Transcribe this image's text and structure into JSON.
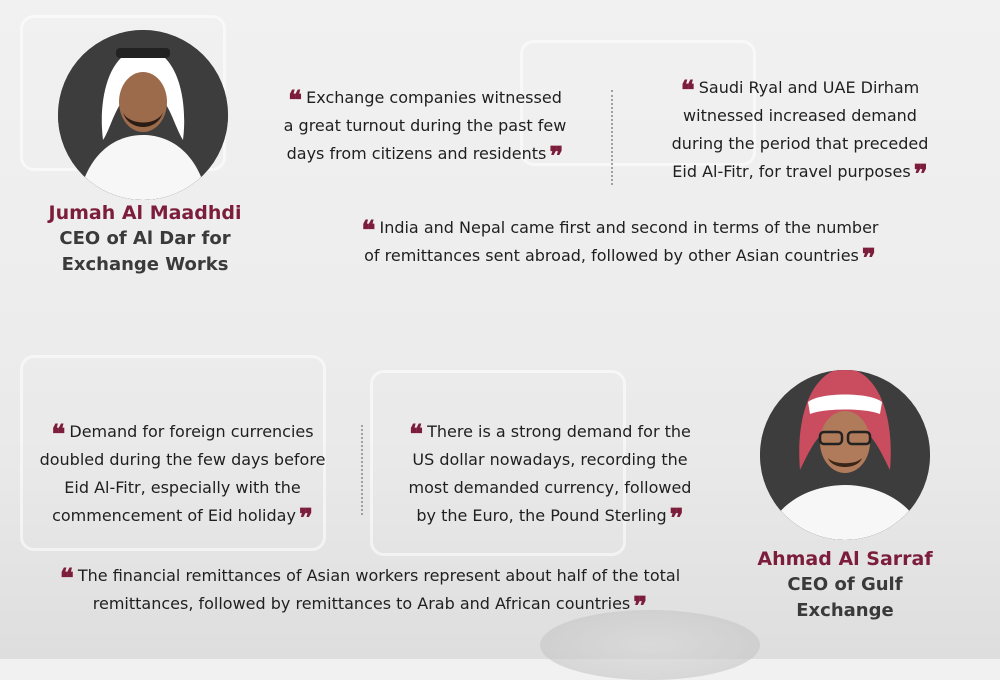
{
  "people": [
    {
      "name": "Jumah Al Maadhdi",
      "title_line1": "CEO of Al Dar for",
      "title_line2": "Exchange Works"
    },
    {
      "name": "Ahmad Al Sarraf",
      "title_line1": "CEO of Gulf",
      "title_line2": "Exchange"
    }
  ],
  "quotes": {
    "q1": [
      "Exchange companies witnessed",
      "a great turnout during the past few",
      "days from citizens and residents"
    ],
    "q2": [
      "Saudi Ryal and UAE Dirham",
      "witnessed increased demand",
      "during the period that preceded",
      "Eid Al-Fitr, for travel purposes"
    ],
    "q3": [
      "India and Nepal came first and second in terms of the number",
      "of remittances sent abroad, followed by other Asian countries"
    ],
    "q4": [
      "Demand for foreign currencies",
      "doubled during the few days before",
      "Eid Al-Fitr, especially with the",
      "commencement of Eid holiday"
    ],
    "q5": [
      "There is a strong demand for the",
      "US dollar nowadays, recording the",
      "most demanded currency, followed",
      "by the Euro, the Pound Sterling"
    ],
    "q6": [
      "The financial remittances of Asian workers represent about half of the total",
      "remittances, followed by remittances to Arab and African countries"
    ]
  },
  "quote_marks": {
    "open": "❝",
    "close": "❞"
  },
  "colors": {
    "accent": "#7c1d3c",
    "avatar_bg": "#3d3d3d"
  }
}
